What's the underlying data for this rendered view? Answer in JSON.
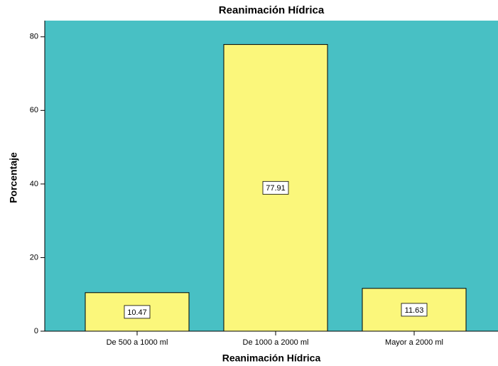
{
  "chart_data": {
    "type": "bar",
    "title": "Reanimación Hídrica",
    "x_label": "Reanimación Hídrica",
    "y_label": "Porcentaje",
    "categories": [
      "De 500 a 1000 ml",
      "De 1000 a 2000 ml",
      "Mayor a 2000 ml"
    ],
    "values": [
      10.47,
      77.91,
      11.63
    ],
    "color": "#fbf77b",
    "background": "#48c0c4",
    "ylim": [
      0,
      84.4
    ],
    "yticks": [
      0,
      20,
      40,
      60,
      80
    ],
    "grid": false
  }
}
